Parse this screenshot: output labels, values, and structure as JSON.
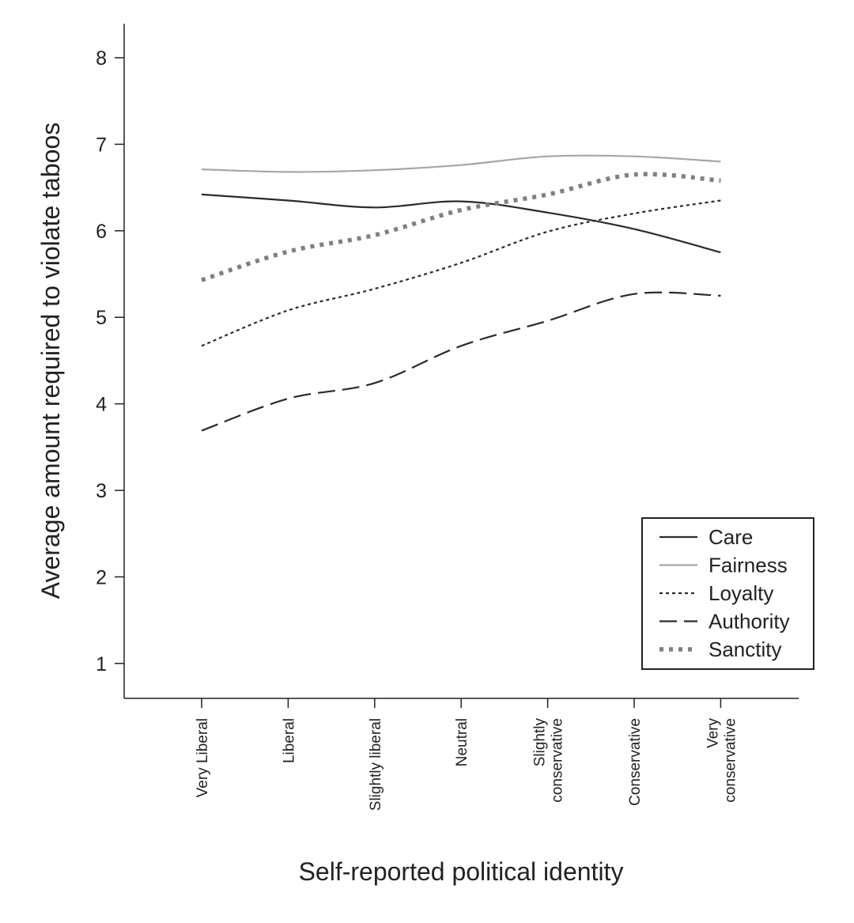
{
  "chart_data": {
    "type": "line",
    "title": "",
    "xlabel": "Self-reported political identity",
    "ylabel": "Average amount required to violate taboos",
    "ylim": [
      0.6,
      8.4
    ],
    "yticks": [
      1,
      2,
      3,
      4,
      5,
      6,
      7,
      8
    ],
    "categories": [
      [
        "Very Liberal"
      ],
      [
        "Liberal"
      ],
      [
        "Slightly liberal"
      ],
      [
        "Neutral"
      ],
      [
        "Slightly",
        "conservative"
      ],
      [
        "Conservative"
      ],
      [
        "Very",
        "conservative"
      ]
    ],
    "legend_position": "bottom-right",
    "series": [
      {
        "name": "Care",
        "style": "solid",
        "color": "#2b2b2b",
        "values": [
          6.42,
          6.35,
          6.27,
          6.34,
          6.21,
          6.02,
          5.75
        ]
      },
      {
        "name": "Fairness",
        "style": "solid",
        "color": "#a6a6a6",
        "values": [
          6.71,
          6.68,
          6.7,
          6.76,
          6.86,
          6.86,
          6.8
        ]
      },
      {
        "name": "Loyalty",
        "style": "dotted",
        "color": "#2b2b2b",
        "values": [
          4.67,
          5.08,
          5.33,
          5.63,
          5.99,
          6.2,
          6.35
        ]
      },
      {
        "name": "Authority",
        "style": "dashed",
        "color": "#2b2b2b",
        "values": [
          3.69,
          4.06,
          4.24,
          4.67,
          4.96,
          5.27,
          5.25
        ]
      },
      {
        "name": "Sanctity",
        "style": "heavy-dotted",
        "color": "#808080",
        "values": [
          5.43,
          5.76,
          5.95,
          6.24,
          6.42,
          6.65,
          6.58
        ]
      }
    ]
  }
}
